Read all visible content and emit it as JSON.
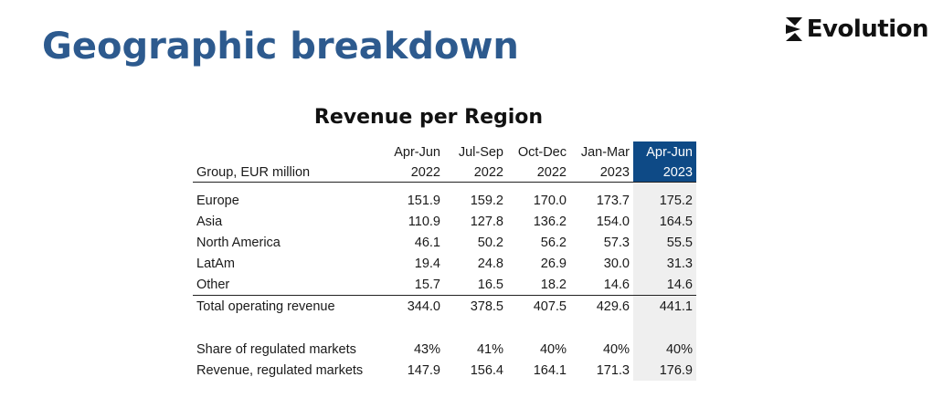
{
  "slide": {
    "title": "Geographic breakdown",
    "logo_text": "Evolution",
    "logo_icon": "evolution-logo-mark"
  },
  "table": {
    "title": "Revenue per Region",
    "label_header": "Group, EUR million",
    "columns": [
      {
        "line1": "Apr-Jun",
        "line2": "2022"
      },
      {
        "line1": "Jul-Sep",
        "line2": "2022"
      },
      {
        "line1": "Oct-Dec",
        "line2": "2022"
      },
      {
        "line1": "Jan-Mar",
        "line2": "2023"
      },
      {
        "line1": "Apr-Jun",
        "line2": "2023"
      }
    ],
    "highlight_column_index": 4,
    "highlight_header_color": "#0e4a86",
    "highlight_cell_color": "#efefef",
    "regions": [
      {
        "label": "Europe",
        "values": [
          "151.9",
          "159.2",
          "170.0",
          "173.7",
          "175.2"
        ]
      },
      {
        "label": "Asia",
        "values": [
          "110.9",
          "127.8",
          "136.2",
          "154.0",
          "164.5"
        ]
      },
      {
        "label": "North America",
        "values": [
          "46.1",
          "50.2",
          "56.2",
          "57.3",
          "55.5"
        ]
      },
      {
        "label": "LatAm",
        "values": [
          "19.4",
          "24.8",
          "26.9",
          "30.0",
          "31.3"
        ]
      },
      {
        "label": "Other",
        "values": [
          "15.7",
          "16.5",
          "18.2",
          "14.6",
          "14.6"
        ]
      }
    ],
    "total": {
      "label": "Total operating revenue",
      "values": [
        "344.0",
        "378.5",
        "407.5",
        "429.6",
        "441.1"
      ]
    },
    "regulated": [
      {
        "label": "Share of regulated markets",
        "values": [
          "43%",
          "41%",
          "40%",
          "40%",
          "40%"
        ]
      },
      {
        "label": "Revenue, regulated markets",
        "values": [
          "147.9",
          "156.4",
          "164.1",
          "171.3",
          "176.9"
        ]
      }
    ]
  },
  "colors": {
    "title": "#2d5a8e",
    "text": "#1a1a1a"
  }
}
